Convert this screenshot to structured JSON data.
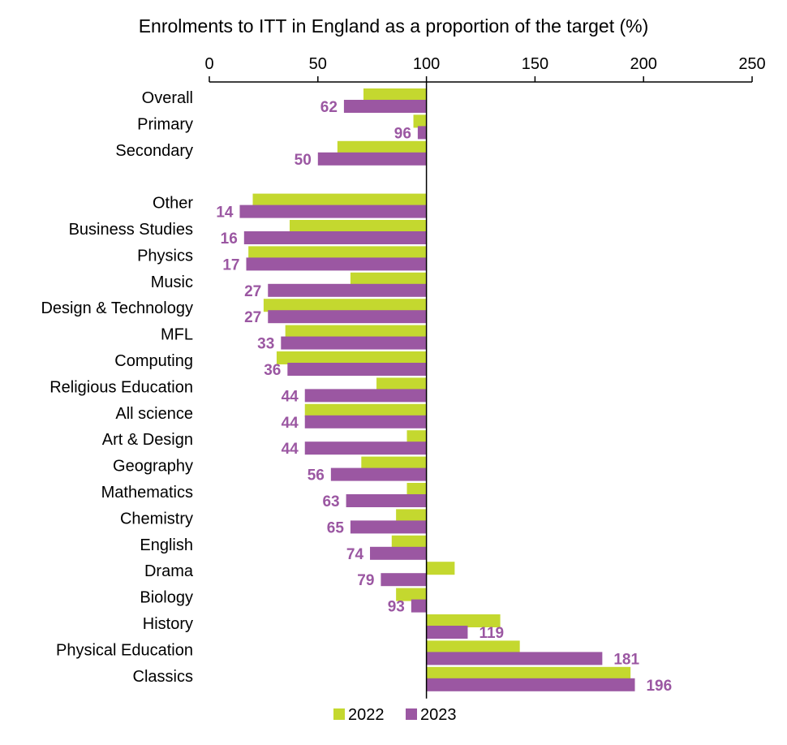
{
  "chart_data": {
    "type": "bar",
    "orientation": "horizontal",
    "title": "Enrolments to ITT in England as a proportion of the target (%)",
    "xlim": [
      0,
      250
    ],
    "xticks": [
      0,
      50,
      100,
      150,
      200,
      250
    ],
    "x_axis_position": "top",
    "reference_value": 100,
    "grid": false,
    "legend": "bottom-center",
    "colors": {
      "2022": "#c4d82f",
      "2023": "#9b57a2"
    },
    "groups": [
      {
        "categories": [
          "Overall",
          "Primary",
          "Secondary"
        ]
      },
      {
        "categories": [
          "Other",
          "Business Studies",
          "Physics",
          "Music",
          "Design & Technology",
          "MFL",
          "Computing",
          "Religious Education",
          "All science",
          "Art & Design",
          "Geography",
          "Mathematics",
          "Chemistry",
          "English",
          "Drama",
          "Biology",
          "History",
          "Physical Education",
          "Classics"
        ]
      }
    ],
    "categories": [
      "Overall",
      "Primary",
      "Secondary",
      "Other",
      "Business Studies",
      "Physics",
      "Music",
      "Design & Technology",
      "MFL",
      "Computing",
      "Religious Education",
      "All science",
      "Art & Design",
      "Geography",
      "Mathematics",
      "Chemistry",
      "English",
      "Drama",
      "Biology",
      "History",
      "Physical Education",
      "Classics"
    ],
    "series": [
      {
        "name": "2022",
        "values": [
          71,
          94,
          59,
          20,
          37,
          18,
          65,
          25,
          35,
          31,
          77,
          44,
          91,
          70,
          91,
          86,
          84,
          113,
          86,
          134,
          143,
          194
        ]
      },
      {
        "name": "2023",
        "values": [
          62,
          96,
          50,
          14,
          16,
          17,
          27,
          27,
          33,
          36,
          44,
          44,
          44,
          56,
          63,
          65,
          74,
          79,
          93,
          119,
          181,
          196
        ]
      }
    ],
    "data_labels_series": "2023",
    "data_labels": [
      "62",
      "96",
      "50",
      "14",
      "16",
      "17",
      "27",
      "27",
      "33",
      "36",
      "44",
      "44",
      "44",
      "56",
      "63",
      "65",
      "74",
      "79",
      "93",
      "119",
      "181",
      "196"
    ]
  }
}
